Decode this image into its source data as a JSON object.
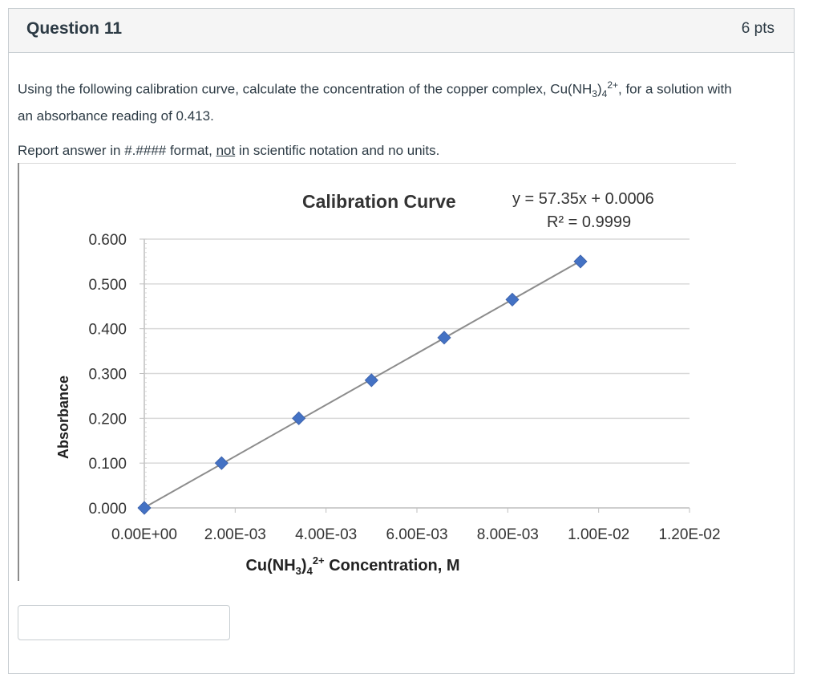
{
  "question": {
    "title": "Question 11",
    "points": "6 pts",
    "text_before_formula": "Using the following calibration curve, calculate the concentration of the copper complex, Cu(NH",
    "formula_sub_3": "3",
    "formula_mid": ")",
    "formula_sub_4": "4",
    "formula_sup_charge": "2+",
    "text_after_formula": ", for a solution with an absorbance reading of 0.413.",
    "instruction_before": "Report answer in #.#### format, ",
    "instruction_underlined": "not",
    "instruction_after": " in scientific notation and no units."
  },
  "answer": {
    "value": "",
    "placeholder": ""
  },
  "chart_data": {
    "type": "scatter",
    "title": "Calibration Curve",
    "equation": "y = 57.35x + 0.0006",
    "r_squared": "R² = 0.9999",
    "xlabel_prefix": "Cu(NH",
    "xlabel_sub3": "3",
    "xlabel_mid": ")",
    "xlabel_sub4": "4",
    "xlabel_sup": "2+",
    "xlabel_suffix": " Concentration, M",
    "ylabel": "Absorbance",
    "xlim": [
      0,
      0.012
    ],
    "ylim": [
      0,
      0.6
    ],
    "x_ticks": [
      0,
      0.002,
      0.004,
      0.006,
      0.008,
      0.01,
      0.012
    ],
    "x_tick_labels": [
      "0.00E+00",
      "2.00E-03",
      "4.00E-03",
      "6.00E-03",
      "8.00E-03",
      "1.00E-02",
      "1.20E-02"
    ],
    "y_ticks": [
      0,
      0.1,
      0.2,
      0.3,
      0.4,
      0.5,
      0.6
    ],
    "y_tick_labels": [
      "0.000",
      "0.100",
      "0.200",
      "0.300",
      "0.400",
      "0.500",
      "0.600"
    ],
    "grid": "horizontal",
    "trendline": {
      "slope": 57.35,
      "intercept": 0.0006,
      "color": "#8c8c8c"
    },
    "series": [
      {
        "marker_color": "#4472c4",
        "x": [
          0,
          0.0017,
          0.0034,
          0.005,
          0.0066,
          0.0081,
          0.0096
        ],
        "y": [
          0,
          0.1,
          0.2,
          0.285,
          0.38,
          0.465,
          0.55
        ]
      }
    ]
  }
}
